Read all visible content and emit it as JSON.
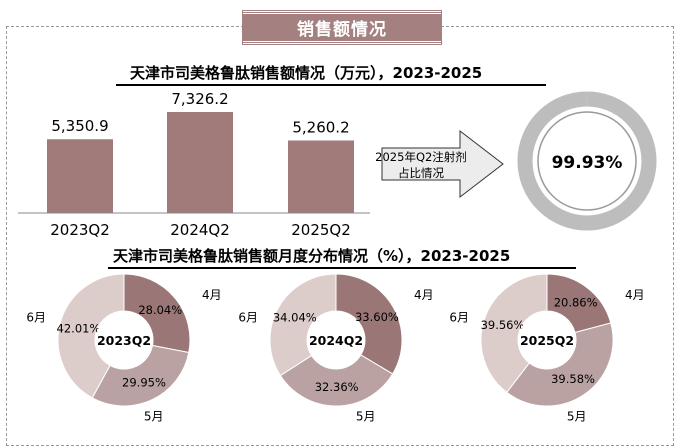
{
  "section_banner": "销售额情况",
  "colors": {
    "bar": "#a07b7a",
    "accent": "#a58080",
    "april": "#9a7776",
    "may": "#b9a2a1",
    "june": "#dcccca",
    "ring": "#bdbdbd",
    "arrow_fill": "#ececec"
  },
  "callout": {
    "text_line1": "2025年Q2注射剂",
    "text_line2": "占比情况",
    "value": "99.93%",
    "percent": 99.93
  },
  "chart_data": [
    {
      "type": "bar",
      "title": "天津市司美格鲁肽销售额情况（万元），2023-2025",
      "categories": [
        "2023Q2",
        "2024Q2",
        "2025Q2"
      ],
      "values": [
        5350.9,
        7326.2,
        5260.2
      ],
      "value_labels": [
        "5,350.9",
        "7,326.2",
        "5,260.2"
      ],
      "xlabel": "",
      "ylabel": "",
      "ylim": [
        0,
        8000
      ],
      "grid": false,
      "legend": "none"
    },
    {
      "type": "pie",
      "title": "天津市司美格鲁肽销售额月度分布情况（%），2023-2025",
      "donuts": [
        {
          "center_label": "2023Q2",
          "slices": [
            {
              "month": "4月",
              "value": 28.04,
              "label": "28.04%"
            },
            {
              "month": "5月",
              "value": 29.95,
              "label": "29.95%"
            },
            {
              "month": "6月",
              "value": 42.01,
              "label": "42.01%"
            }
          ]
        },
        {
          "center_label": "2024Q2",
          "slices": [
            {
              "month": "4月",
              "value": 33.6,
              "label": "33.60%"
            },
            {
              "month": "5月",
              "value": 32.36,
              "label": "32.36%"
            },
            {
              "month": "6月",
              "value": 34.04,
              "label": "34.04%"
            }
          ]
        },
        {
          "center_label": "2025Q2",
          "slices": [
            {
              "month": "4月",
              "value": 20.86,
              "label": "20.86%"
            },
            {
              "month": "5月",
              "value": 39.58,
              "label": "39.58%"
            },
            {
              "month": "6月",
              "value": 39.56,
              "label": "39.56%"
            }
          ]
        }
      ]
    }
  ]
}
